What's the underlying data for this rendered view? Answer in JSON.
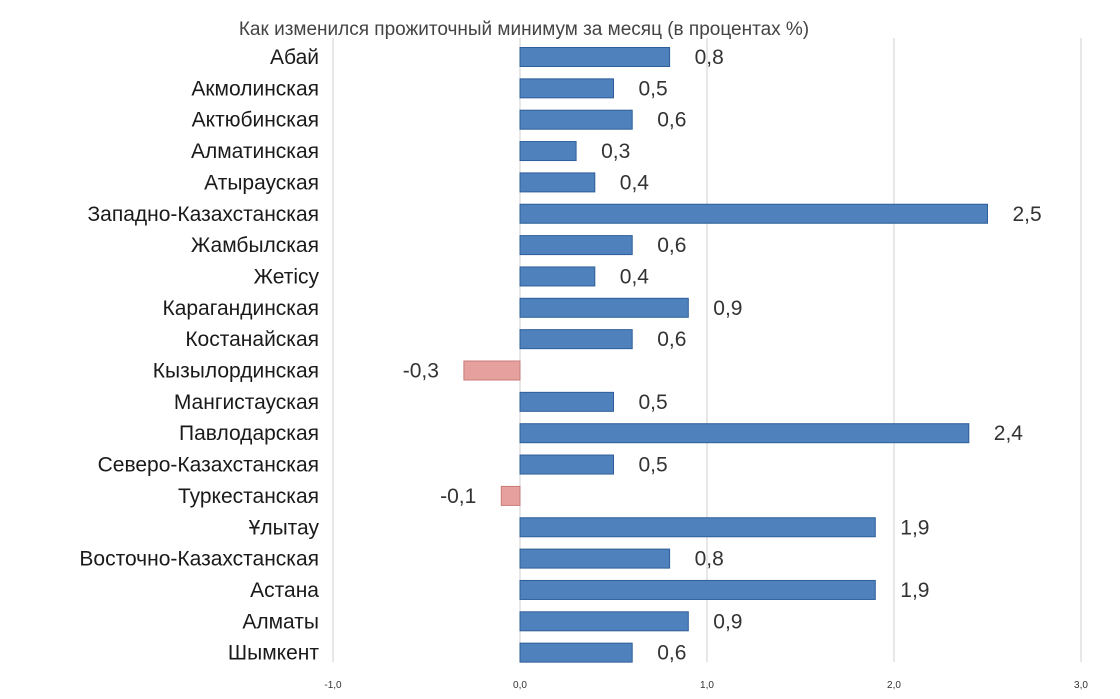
{
  "chart_data": {
    "type": "bar",
    "orientation": "horizontal",
    "title": "Как изменился прожиточный минимум за месяц (в процентах %)",
    "categories": [
      "Абай",
      "Акмолинская",
      "Актюбинская",
      "Алматинская",
      "Атырауская",
      "Западно-Казахстанская",
      "Жамбылская",
      "Жетісу",
      "Карагандинская",
      "Костанайская",
      "Кызылординская",
      "Мангистауская",
      "Павлодарская",
      "Северо-Казахстанская",
      "Туркестанская",
      "Ұлытау",
      "Восточно-Казахстанская",
      "Астана",
      "Алматы",
      "Шымкент"
    ],
    "values": [
      0.8,
      0.5,
      0.6,
      0.3,
      0.4,
      2.5,
      0.6,
      0.4,
      0.9,
      0.6,
      -0.3,
      0.5,
      2.4,
      0.5,
      -0.1,
      1.9,
      0.8,
      1.9,
      0.9,
      0.6
    ],
    "value_labels": [
      "0,8",
      "0,5",
      "0,6",
      "0,3",
      "0,4",
      "2,5",
      "0,6",
      "0,4",
      "0,9",
      "0,6",
      "-0,3",
      "0,5",
      "2,4",
      "0,5",
      "-0,1",
      "1,9",
      "0,8",
      "1,9",
      "0,9",
      "0,6"
    ],
    "xlim": [
      -1.0,
      3.0
    ],
    "xticks": [
      -1.0,
      0.0,
      1.0,
      2.0,
      3.0
    ],
    "xtick_labels": [
      "-1,0",
      "0,0",
      "1,0",
      "2,0",
      "3,0"
    ],
    "grid": "vertical",
    "legend": "none",
    "colors": {
      "positive": "#4f81bd",
      "positive_edge": "#2e5f9a",
      "negative": "#e6a19e",
      "negative_edge": "#c97a77",
      "grid": "#cfcfcf"
    }
  }
}
